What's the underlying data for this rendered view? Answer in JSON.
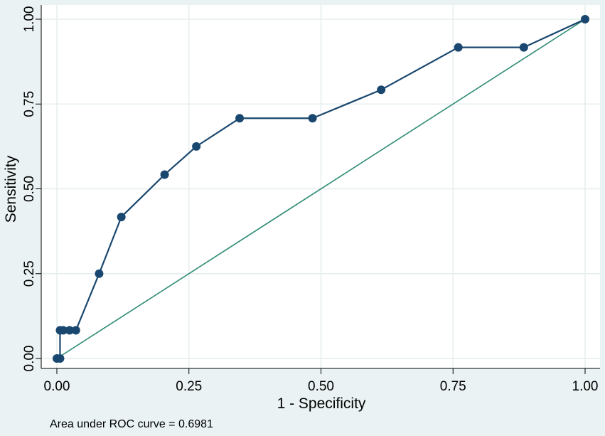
{
  "chart_data": {
    "type": "line",
    "title": "",
    "xlabel": "1 - Specificity",
    "ylabel": "Sensitivity",
    "xlim": [
      0,
      1
    ],
    "ylim": [
      0,
      1
    ],
    "x_ticks": [
      "0.00",
      "0.25",
      "0.50",
      "0.75",
      "1.00"
    ],
    "y_ticks": [
      "0.00",
      "0.25",
      "0.50",
      "0.75",
      "1.00"
    ],
    "grid": "on",
    "legend": "none",
    "series": [
      {
        "type": "line-with-markers",
        "color": "#1a476f",
        "x": [
          0,
          0.006,
          0.006,
          0.012,
          0.024,
          0.036,
          0.08,
          0.122,
          0.204,
          0.264,
          0.346,
          0.484,
          0.614,
          0.76,
          0.884,
          1.0
        ],
        "y": [
          0,
          0,
          0.083,
          0.083,
          0.083,
          0.083,
          0.25,
          0.417,
          0.542,
          0.625,
          0.708,
          0.708,
          0.792,
          0.917,
          0.917,
          1.0
        ]
      },
      {
        "type": "reference-line",
        "color": "#2d8a74",
        "x": [
          0,
          1
        ],
        "y": [
          0,
          1
        ]
      }
    ],
    "annotation": "Area under ROC curve = 0.6981"
  },
  "colors": {
    "background": "#eaf2f3",
    "plot_background": "#ffffff",
    "grid": "#e5eeee",
    "series": "#1a476f",
    "reference": "#2d8a74"
  }
}
